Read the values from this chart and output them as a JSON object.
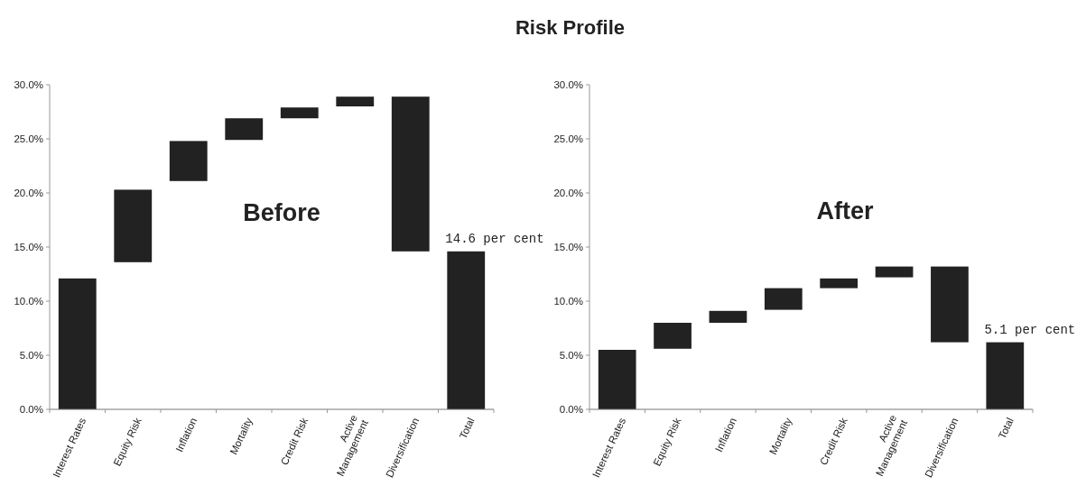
{
  "chart_data": [
    {
      "type": "bar",
      "title": "Before",
      "categories": [
        "Interest Rates",
        "Equity Risk",
        "Inflation",
        "Mortality",
        "Credit Risk",
        "Active Management",
        "Diversification",
        "Total"
      ],
      "values": [
        12.1,
        6.7,
        3.7,
        2.0,
        1.0,
        0.9,
        -14.3,
        14.6
      ],
      "base": [
        0,
        13.6,
        21.1,
        24.9,
        26.9,
        28.0,
        28.9,
        0
      ],
      "color": "#222222",
      "ylim": [
        0,
        30
      ],
      "yticks": [
        {
          "value": 0,
          "label": "0.0%"
        },
        {
          "value": 5,
          "label": "5.0%"
        },
        {
          "value": 10,
          "label": "10.0%"
        },
        {
          "value": 15,
          "label": "15.0%"
        },
        {
          "value": 20,
          "label": "20.0%"
        },
        {
          "value": 25,
          "label": "25.0%"
        },
        {
          "value": 30,
          "label": "30.0%"
        }
      ],
      "annotations": [
        "Risk Profile",
        {
          "text": "14.6 per cent",
          "x": "Total",
          "y": 14.6
        }
      ]
    },
    {
      "type": "bar",
      "title": "After",
      "categories": [
        "Interest Rates",
        "Equity Risk",
        "Inflation",
        "Mortality",
        "Credit Risk",
        "Active Management",
        "Diversification",
        "Total"
      ],
      "values": [
        5.5,
        2.4,
        1.1,
        2.0,
        0.9,
        1.0,
        -7.0,
        6.2
      ],
      "base": [
        0,
        5.6,
        8.0,
        9.2,
        11.2,
        12.2,
        13.2,
        0
      ],
      "color": "#222222",
      "ylim": [
        0,
        30
      ],
      "yticks": [
        {
          "value": 0,
          "label": "0.0%"
        },
        {
          "value": 5,
          "label": "5.0%"
        },
        {
          "value": 10,
          "label": "10.0%"
        },
        {
          "value": 15,
          "label": "15.0%"
        },
        {
          "value": 20,
          "label": "20.0%"
        },
        {
          "value": 25,
          "label": "25.0%"
        },
        {
          "value": 30,
          "label": "30.0%"
        }
      ],
      "annotations": [
        {
          "text": "5.1 per cent",
          "x": "Total",
          "y": 6.2
        }
      ]
    }
  ]
}
